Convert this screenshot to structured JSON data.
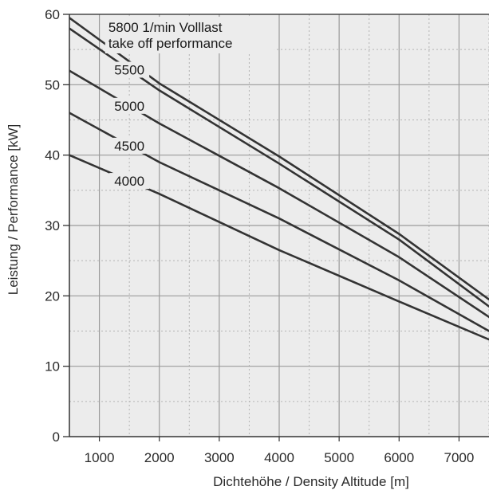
{
  "chart_data": {
    "type": "line",
    "xlabel": "Dichtehöhe / Density Altitude [m]",
    "ylabel": "Leistung / Performance [kW]",
    "xlim": [
      500,
      7500
    ],
    "ylim": [
      0,
      60
    ],
    "x_ticks": [
      1000,
      2000,
      3000,
      4000,
      5000,
      6000,
      7000
    ],
    "y_ticks": [
      0,
      10,
      20,
      30,
      40,
      50,
      60
    ],
    "grid": {
      "major": true,
      "minor": true
    },
    "annotation": {
      "line1": "5800 1/min Volllast",
      "line2": "take off performance"
    },
    "series": [
      {
        "name": "5800",
        "x": [
          500,
          2000,
          4000,
          6000,
          7500
        ],
        "y": [
          59.5,
          50.2,
          39.8,
          28.8,
          19.5
        ]
      },
      {
        "name": "5500",
        "x": [
          500,
          2000,
          4000,
          6000,
          7500
        ],
        "y": [
          58.0,
          49.2,
          38.8,
          28.0,
          18.5
        ]
      },
      {
        "name": "5000",
        "x": [
          500,
          2000,
          4000,
          6000,
          7500
        ],
        "y": [
          52.0,
          44.5,
          35.3,
          25.5,
          17.0
        ]
      },
      {
        "name": "4500",
        "x": [
          500,
          2000,
          4000,
          6000,
          7500
        ],
        "y": [
          46.0,
          39.0,
          31.0,
          22.2,
          15.0
        ]
      },
      {
        "name": "4000",
        "x": [
          500,
          2000,
          4000,
          6000,
          7500
        ],
        "y": [
          40.0,
          34.5,
          26.5,
          19.2,
          13.8
        ]
      }
    ],
    "colors": {
      "plot_background": "#ececec",
      "major_grid": "#9a9a9a",
      "minor_grid": "#b4b4b4",
      "line": "#333333",
      "axis": "#333333"
    }
  }
}
